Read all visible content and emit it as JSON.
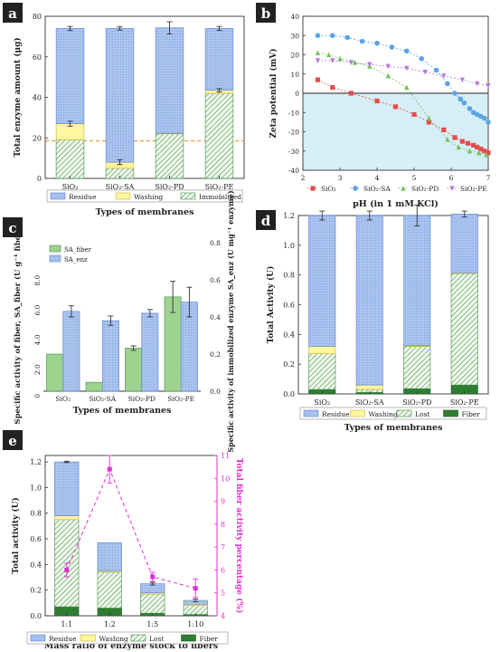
{
  "panels": {
    "a": {
      "letter": "a"
    },
    "b": {
      "letter": "b"
    },
    "c": {
      "letter": "c"
    },
    "d": {
      "letter": "d"
    },
    "e": {
      "letter": "e"
    }
  },
  "colors": {
    "blue": "#a9c3ef",
    "blue_edge": "#5b7fd0",
    "yellow": "#fff6a0",
    "yellow_edge": "#c7b33a",
    "green": "#9ed38f",
    "green_edge": "#3f8f45",
    "dark_green": "#2f7d32",
    "hatch_bg": "#f2f8ef",
    "pink": "#e22fd2",
    "red": "#e74c4c",
    "sa_blue": "#5aa3e6",
    "pd_green": "#73c35e",
    "pe_purple": "#b47bd8",
    "cyan_fill": "#d6eef5",
    "dash_orange": "#e08a1e"
  },
  "chart_data": [
    {
      "panel": "a",
      "type": "bar",
      "stacked": true,
      "categories": [
        "SiO₂",
        "SiO₂-SA",
        "SiO₂-PD",
        "SiO₂-PE"
      ],
      "ylabel": "Total enzyme amount (μg)",
      "xlabel": "Types of membranes",
      "ylim": [
        0,
        80
      ],
      "yticks": [
        0,
        20,
        40,
        60,
        80
      ],
      "reference_line": 18.5,
      "series": [
        {
          "name": "Immobilized",
          "values": [
            19,
            5,
            22,
            42
          ],
          "style": "hatch"
        },
        {
          "name": "Washing",
          "values": [
            8,
            3,
            0.3,
            1.5
          ],
          "style": "yellow"
        },
        {
          "name": "Residue",
          "values": [
            47,
            66,
            52,
            30.5
          ],
          "style": "blue"
        }
      ],
      "errors": [
        1,
        0.8,
        3,
        1
      ],
      "mid_errors": [
        1.2,
        1.2,
        0,
        0.8
      ],
      "legend": [
        "Residue",
        "Washing",
        "Immobilized"
      ],
      "legend_position": "bottom"
    },
    {
      "panel": "b",
      "type": "scatter",
      "xlabel": "pH (in 1 mM KCl)",
      "ylabel": "Zeta potential (mV)",
      "xlim": [
        2,
        7
      ],
      "ylim": [
        -40,
        40
      ],
      "xticks": [
        2,
        3,
        4,
        5,
        6,
        7
      ],
      "yticks": [
        -40,
        -30,
        -20,
        -10,
        0,
        10,
        20,
        30,
        40
      ],
      "shaded_region": [
        -40,
        0
      ],
      "legend": [
        "SiO₂",
        "SiO₂-SA",
        "SiO₂-PD",
        "SiO₂-PE"
      ],
      "legend_position": "bottom",
      "series": [
        {
          "name": "SiO₂",
          "marker": "square",
          "x": [
            2.4,
            2.8,
            3.3,
            4.0,
            4.5,
            5.0,
            5.4,
            5.8,
            6.1,
            6.3,
            6.45,
            6.6,
            6.7,
            6.8,
            6.9,
            7.0
          ],
          "y": [
            7,
            3,
            0,
            -4,
            -7,
            -11,
            -15,
            -19,
            -23,
            -25,
            -26,
            -27,
            -28,
            -29,
            -30,
            -31
          ]
        },
        {
          "name": "SiO₂-SA",
          "marker": "circle",
          "x": [
            2.4,
            2.8,
            3.2,
            3.6,
            4.0,
            4.4,
            4.8,
            5.2,
            5.6,
            5.9,
            6.1,
            6.25,
            6.35,
            6.5,
            6.6,
            6.7,
            6.8,
            6.9,
            7.0
          ],
          "y": [
            30,
            30,
            29,
            27,
            26,
            24,
            22,
            18,
            12,
            5,
            0,
            -3,
            -5,
            -8,
            -10,
            -11,
            -12,
            -13,
            -15
          ]
        },
        {
          "name": "SiO₂-PD",
          "marker": "triangle",
          "x": [
            2.4,
            2.7,
            3.0,
            3.4,
            3.8,
            4.3,
            4.8,
            5.4,
            5.9,
            6.2,
            6.5,
            6.75,
            6.95
          ],
          "y": [
            21,
            20,
            18,
            16,
            14,
            9,
            3,
            -13,
            -24,
            -28,
            -30,
            -31,
            -32
          ]
        },
        {
          "name": "SiO₂-PE",
          "marker": "down-triangle",
          "x": [
            2.4,
            2.8,
            3.3,
            3.8,
            4.3,
            4.8,
            5.3,
            5.8,
            6.3,
            6.7,
            7.0
          ],
          "y": [
            17,
            17,
            16,
            15,
            14,
            13,
            11,
            9,
            7,
            5,
            4
          ]
        }
      ]
    },
    {
      "panel": "c",
      "type": "bar",
      "grouped": true,
      "categories": [
        "SiO₂",
        "SiO₂-SA",
        "SiO₂-PD",
        "SiO₂-PE"
      ],
      "xlabel": "Types of membranes",
      "ylabel": "Specific activity of fiber, SA_fiber (U g⁻¹ fiber)",
      "ylabel_right": "Specific activity of immobilized enzyme SA_enz (U mg⁻¹ enzyme)",
      "ylim_left": [
        0,
        10
      ],
      "yticks_left": [
        0,
        2,
        4,
        6,
        8
      ],
      "yticklabels_left": [
        "0",
        "2.0",
        "4.0",
        "6.0",
        "8.0"
      ],
      "ylim_right": [
        0,
        0.8
      ],
      "yticks_right": [
        0,
        0.2,
        0.4,
        0.6,
        0.8
      ],
      "yticklabels_right": [
        "0.0",
        "0.2",
        "0.4",
        "0.6",
        "0.8"
      ],
      "legend": [
        "SA_fiber",
        "SA_enz"
      ],
      "legend_position": "top-left",
      "series": [
        {
          "name": "SA_fiber",
          "axis": "left",
          "values": [
            2.5,
            0.6,
            2.9,
            6.35
          ],
          "errors": [
            0,
            0,
            0.15,
            1.05
          ],
          "style": "green"
        },
        {
          "name": "SA_enz",
          "axis": "right",
          "values": [
            0.43,
            0.38,
            0.42,
            0.48
          ],
          "errors": [
            0.03,
            0.025,
            0.02,
            0.08
          ],
          "style": "blue"
        }
      ]
    },
    {
      "panel": "d",
      "type": "bar",
      "stacked": true,
      "categories": [
        "SiO₂",
        "SiO₂-SA",
        "SiO₂-PD",
        "SiO₂-PE"
      ],
      "xlabel": "Types of membranes",
      "ylabel": "Total Activity (U)",
      "ylim": [
        0,
        1.2
      ],
      "yticks": [
        0,
        0.2,
        0.4,
        0.6,
        0.8,
        1.0,
        1.2
      ],
      "yticklabels": [
        "0.0",
        "0.2",
        "0.4",
        "0.6",
        "0.8",
        "1.0",
        "1.2"
      ],
      "series": [
        {
          "name": "Fiber",
          "values": [
            0.03,
            0.01,
            0.035,
            0.06
          ],
          "style": "dark_green"
        },
        {
          "name": "Lost",
          "values": [
            0.24,
            0.02,
            0.285,
            0.75
          ],
          "style": "hatch"
        },
        {
          "name": "Washing",
          "values": [
            0.05,
            0.03,
            0.005,
            0.005
          ],
          "style": "yellow"
        },
        {
          "name": "Residue",
          "values": [
            0.88,
            1.14,
            0.875,
            0.395
          ],
          "style": "blue"
        }
      ],
      "errors": [
        0.03,
        0.03,
        0.07,
        0.02
      ],
      "legend": [
        "Residue",
        "Washing",
        "Lost",
        "Fiber"
      ],
      "legend_position": "bottom"
    },
    {
      "panel": "e",
      "type": "bar",
      "stacked": true,
      "categories": [
        "1:1",
        "1:2",
        "1:5",
        "1:10"
      ],
      "xlabel": "Mass ratio of enzyme stock to fibers",
      "ylabel": "Total activity (U)",
      "ylabel_right": "Total fiber activity percentage (%)",
      "ylim": [
        0,
        1.25
      ],
      "yticks": [
        0,
        0.2,
        0.4,
        0.6,
        0.8,
        1.0,
        1.2
      ],
      "yticklabels": [
        "0.0",
        "0.2",
        "0.4",
        "0.6",
        "0.8",
        "1.0",
        "1.2"
      ],
      "ylim_right": [
        4,
        11
      ],
      "yticks_right": [
        4,
        5,
        6,
        7,
        8,
        9,
        10,
        11
      ],
      "series": [
        {
          "name": "Fiber",
          "values": [
            0.07,
            0.06,
            0.02,
            0.01
          ],
          "style": "dark_green"
        },
        {
          "name": "Lost",
          "values": [
            0.68,
            0.28,
            0.15,
            0.07
          ],
          "style": "hatch"
        },
        {
          "name": "Washing",
          "values": [
            0.03,
            0.01,
            0.01,
            0.01
          ],
          "style": "yellow"
        },
        {
          "name": "Residue",
          "values": [
            0.42,
            0.22,
            0.07,
            0.03
          ],
          "style": "blue"
        }
      ],
      "errors": [
        0.005,
        0,
        0.01,
        0.01
      ],
      "line": {
        "axis": "right",
        "values": [
          6.0,
          10.4,
          5.7,
          5.2
        ],
        "errors": [
          0.3,
          0.6,
          0.2,
          0.4
        ]
      },
      "legend": [
        "Residue",
        "Washing",
        "Lost",
        "Fiber"
      ],
      "legend_position": "bottom"
    }
  ]
}
